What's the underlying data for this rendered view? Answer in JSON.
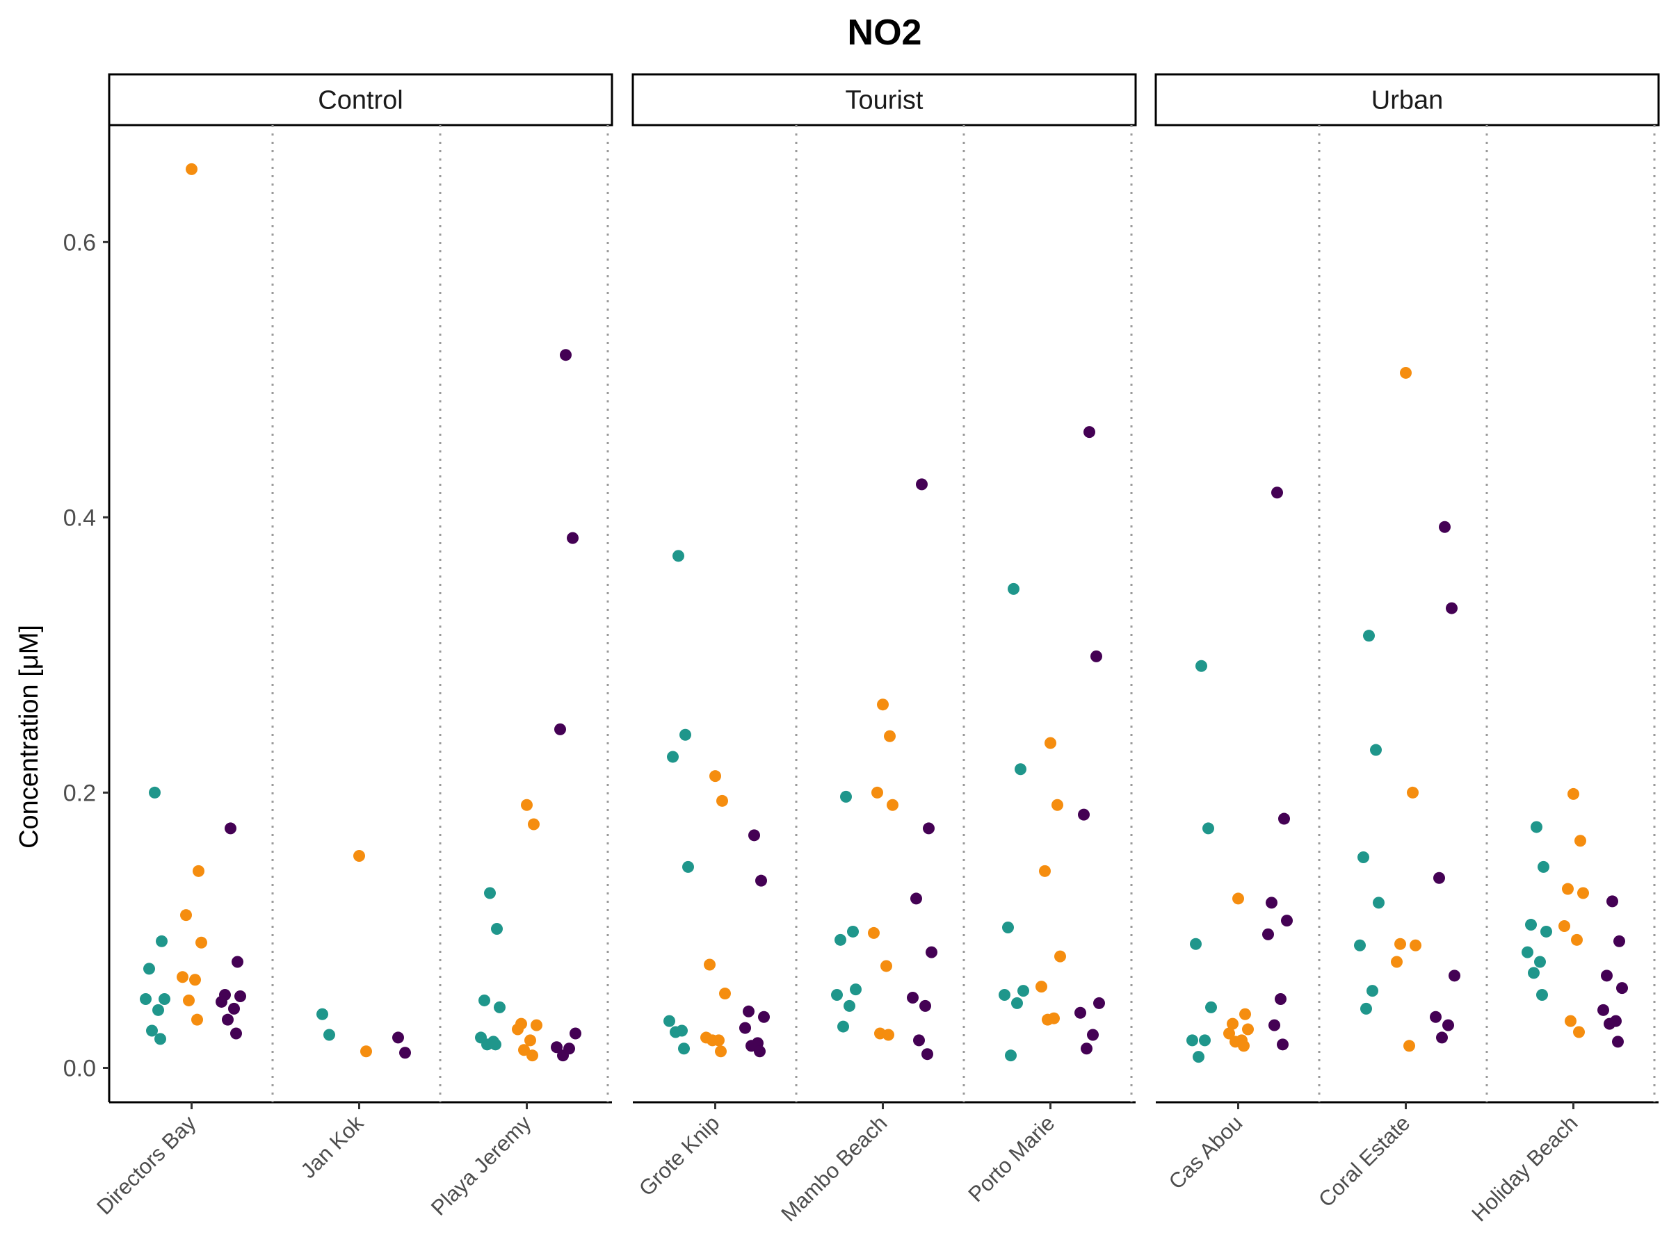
{
  "chart_data": {
    "type": "scatter",
    "title": "NO2",
    "ylabel": "Concentration [μM]",
    "xlabel": "",
    "ylim": [
      -0.025,
      0.685
    ],
    "yticks": [
      0.0,
      0.2,
      0.4,
      0.6
    ],
    "ytick_labels": [
      "0.0",
      "0.2",
      "0.4",
      "0.6"
    ],
    "grid": false,
    "legend": "none",
    "colors": [
      "#1f968b",
      "#f58d0f",
      "#440154"
    ],
    "group_separator": "dotted-gray",
    "panels": [
      {
        "name": "Control",
        "sites": [
          {
            "name": "Directors Bay",
            "groups": [
              [
                0.2,
                0.092,
                0.072,
                0.05,
                0.05,
                0.042,
                0.027,
                0.021
              ],
              [
                0.653,
                0.143,
                0.111,
                0.091,
                0.066,
                0.064,
                0.049,
                0.035
              ],
              [
                0.174,
                0.077,
                0.053,
                0.052,
                0.048,
                0.043,
                0.035,
                0.025
              ]
            ]
          },
          {
            "name": "Jan Kok",
            "groups": [
              [
                0.039,
                0.024
              ],
              [
                0.154,
                0.012
              ],
              [
                0.022,
                0.011
              ]
            ]
          },
          {
            "name": "Playa Jeremy",
            "groups": [
              [
                0.127,
                0.101,
                0.049,
                0.044,
                0.022,
                0.019,
                0.017,
                0.017
              ],
              [
                0.191,
                0.177,
                0.032,
                0.031,
                0.028,
                0.02,
                0.013,
                0.009
              ],
              [
                0.518,
                0.385,
                0.246,
                0.025,
                0.015,
                0.014,
                0.009
              ]
            ]
          }
        ]
      },
      {
        "name": "Tourist",
        "sites": [
          {
            "name": "Grote Knip",
            "groups": [
              [
                0.372,
                0.242,
                0.226,
                0.146,
                0.034,
                0.027,
                0.026,
                0.014
              ],
              [
                0.212,
                0.194,
                0.075,
                0.054,
                0.022,
                0.02,
                0.02,
                0.012
              ],
              [
                0.169,
                0.136,
                0.041,
                0.037,
                0.029,
                0.018,
                0.016,
                0.012
              ]
            ]
          },
          {
            "name": "Mambo Beach",
            "groups": [
              [
                0.197,
                0.099,
                0.093,
                0.057,
                0.053,
                0.045,
                0.03
              ],
              [
                0.264,
                0.241,
                0.2,
                0.191,
                0.098,
                0.074,
                0.025,
                0.024
              ],
              [
                0.424,
                0.174,
                0.123,
                0.084,
                0.051,
                0.045,
                0.02,
                0.01
              ]
            ]
          },
          {
            "name": "Porto Marie",
            "groups": [
              [
                0.348,
                0.217,
                0.102,
                0.056,
                0.053,
                0.047,
                0.009
              ],
              [
                0.236,
                0.191,
                0.143,
                0.081,
                0.059,
                0.036,
                0.035
              ],
              [
                0.462,
                0.299,
                0.184,
                0.047,
                0.04,
                0.024,
                0.014
              ]
            ]
          }
        ]
      },
      {
        "name": "Urban",
        "sites": [
          {
            "name": "Cas Abou",
            "groups": [
              [
                0.292,
                0.174,
                0.09,
                0.044,
                0.02,
                0.02,
                0.008
              ],
              [
                0.123,
                0.039,
                0.032,
                0.028,
                0.025,
                0.02,
                0.019,
                0.016
              ],
              [
                0.418,
                0.181,
                0.12,
                0.107,
                0.097,
                0.05,
                0.031,
                0.017
              ]
            ]
          },
          {
            "name": "Coral Estate",
            "groups": [
              [
                0.314,
                0.231,
                0.153,
                0.12,
                0.089,
                0.056,
                0.043
              ],
              [
                0.505,
                0.2,
                0.09,
                0.089,
                0.077,
                0.016
              ],
              [
                0.393,
                0.334,
                0.138,
                0.067,
                0.037,
                0.031,
                0.022
              ]
            ]
          },
          {
            "name": "Holiday Beach",
            "groups": [
              [
                0.175,
                0.146,
                0.104,
                0.099,
                0.084,
                0.077,
                0.069,
                0.053
              ],
              [
                0.199,
                0.165,
                0.13,
                0.127,
                0.103,
                0.093,
                0.034,
                0.026
              ],
              [
                0.121,
                0.092,
                0.067,
                0.058,
                0.042,
                0.034,
                0.032,
                0.019
              ]
            ]
          }
        ]
      }
    ]
  }
}
